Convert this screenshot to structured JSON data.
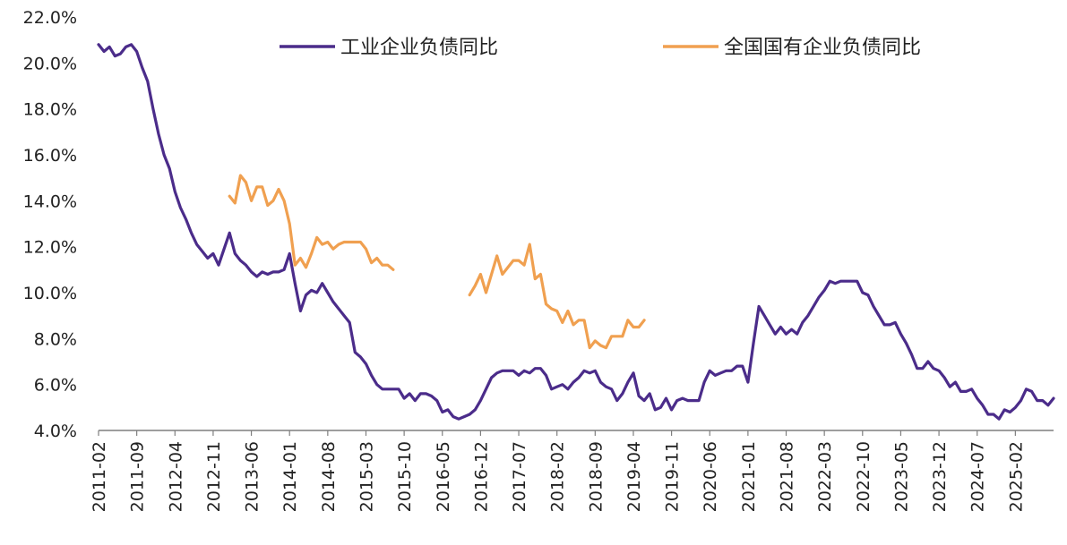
{
  "chart_data": {
    "type": "line",
    "title": "",
    "xlabel": "",
    "ylabel": "",
    "ylim": [
      4.0,
      22.0
    ],
    "y_ticks": [
      "22.0%",
      "20.0%",
      "18.0%",
      "16.0%",
      "14.0%",
      "12.0%",
      "10.0%",
      "8.0%",
      "6.0%",
      "4.0%"
    ],
    "y_tick_values": [
      22,
      20,
      18,
      16,
      14,
      12,
      10,
      8,
      6,
      4
    ],
    "x_start": "2011-02",
    "x_end": "2025-09",
    "x_ticks": [
      "2011-02",
      "2011-09",
      "2012-04",
      "2012-11",
      "2013-06",
      "2014-01",
      "2014-08",
      "2015-03",
      "2015-10",
      "2016-05",
      "2016-12",
      "2017-07",
      "2018-02",
      "2018-09",
      "2019-04",
      "2019-11",
      "2020-06",
      "2021-01",
      "2021-08",
      "2022-03",
      "2022-10",
      "2023-05",
      "2023-12",
      "2024-07",
      "2025-02"
    ],
    "legend_position": "top",
    "grid": false,
    "series": [
      {
        "name": "工业企业负债同比",
        "color": "#4B2C8A",
        "points": [
          [
            "2011-02",
            20.8
          ],
          [
            "2011-03",
            20.5
          ],
          [
            "2011-04",
            20.7
          ],
          [
            "2011-05",
            20.3
          ],
          [
            "2011-06",
            20.4
          ],
          [
            "2011-07",
            20.7
          ],
          [
            "2011-08",
            20.8
          ],
          [
            "2011-09",
            20.5
          ],
          [
            "2011-10",
            19.8
          ],
          [
            "2011-11",
            19.2
          ],
          [
            "2011-12",
            18.0
          ],
          [
            "2012-01",
            16.9
          ],
          [
            "2012-02",
            16.0
          ],
          [
            "2012-03",
            15.4
          ],
          [
            "2012-04",
            14.4
          ],
          [
            "2012-05",
            13.7
          ],
          [
            "2012-06",
            13.2
          ],
          [
            "2012-07",
            12.6
          ],
          [
            "2012-08",
            12.1
          ],
          [
            "2012-09",
            11.8
          ],
          [
            "2012-10",
            11.5
          ],
          [
            "2012-11",
            11.7
          ],
          [
            "2012-12",
            11.2
          ],
          [
            "2013-01",
            11.9
          ],
          [
            "2013-02",
            12.6
          ],
          [
            "2013-03",
            11.7
          ],
          [
            "2013-04",
            11.4
          ],
          [
            "2013-05",
            11.2
          ],
          [
            "2013-06",
            10.9
          ],
          [
            "2013-07",
            10.7
          ],
          [
            "2013-08",
            10.9
          ],
          [
            "2013-09",
            10.8
          ],
          [
            "2013-10",
            10.9
          ],
          [
            "2013-11",
            10.9
          ],
          [
            "2013-12",
            11.0
          ],
          [
            "2014-01",
            11.7
          ],
          [
            "2014-02",
            10.4
          ],
          [
            "2014-03",
            9.2
          ],
          [
            "2014-04",
            9.9
          ],
          [
            "2014-05",
            10.1
          ],
          [
            "2014-06",
            10.0
          ],
          [
            "2014-07",
            10.4
          ],
          [
            "2014-08",
            10.0
          ],
          [
            "2014-09",
            9.6
          ],
          [
            "2014-10",
            9.3
          ],
          [
            "2014-11",
            9.0
          ],
          [
            "2014-12",
            8.7
          ],
          [
            "2015-01",
            7.4
          ],
          [
            "2015-02",
            7.2
          ],
          [
            "2015-03",
            6.9
          ],
          [
            "2015-04",
            6.4
          ],
          [
            "2015-05",
            6.0
          ],
          [
            "2015-06",
            5.8
          ],
          [
            "2015-07",
            5.8
          ],
          [
            "2015-08",
            5.8
          ],
          [
            "2015-09",
            5.8
          ],
          [
            "2015-10",
            5.4
          ],
          [
            "2015-11",
            5.6
          ],
          [
            "2015-12",
            5.3
          ],
          [
            "2016-01",
            5.6
          ],
          [
            "2016-02",
            5.6
          ],
          [
            "2016-03",
            5.5
          ],
          [
            "2016-04",
            5.3
          ],
          [
            "2016-05",
            4.8
          ],
          [
            "2016-06",
            4.9
          ],
          [
            "2016-07",
            4.6
          ],
          [
            "2016-08",
            4.5
          ],
          [
            "2016-09",
            4.6
          ],
          [
            "2016-10",
            4.7
          ],
          [
            "2016-11",
            4.9
          ],
          [
            "2016-12",
            5.3
          ],
          [
            "2017-01",
            5.8
          ],
          [
            "2017-02",
            6.3
          ],
          [
            "2017-03",
            6.5
          ],
          [
            "2017-04",
            6.6
          ],
          [
            "2017-05",
            6.6
          ],
          [
            "2017-06",
            6.6
          ],
          [
            "2017-07",
            6.4
          ],
          [
            "2017-08",
            6.6
          ],
          [
            "2017-09",
            6.5
          ],
          [
            "2017-10",
            6.7
          ],
          [
            "2017-11",
            6.7
          ],
          [
            "2017-12",
            6.4
          ],
          [
            "2018-01",
            5.8
          ],
          [
            "2018-02",
            5.9
          ],
          [
            "2018-03",
            6.0
          ],
          [
            "2018-04",
            5.8
          ],
          [
            "2018-05",
            6.1
          ],
          [
            "2018-06",
            6.3
          ],
          [
            "2018-07",
            6.6
          ],
          [
            "2018-08",
            6.5
          ],
          [
            "2018-09",
            6.6
          ],
          [
            "2018-10",
            6.1
          ],
          [
            "2018-11",
            5.9
          ],
          [
            "2018-12",
            5.8
          ],
          [
            "2019-01",
            5.3
          ],
          [
            "2019-02",
            5.6
          ],
          [
            "2019-03",
            6.1
          ],
          [
            "2019-04",
            6.5
          ],
          [
            "2019-05",
            5.5
          ],
          [
            "2019-06",
            5.3
          ],
          [
            "2019-07",
            5.6
          ],
          [
            "2019-08",
            4.9
          ],
          [
            "2019-09",
            5.0
          ],
          [
            "2019-10",
            5.4
          ],
          [
            "2019-11",
            4.9
          ],
          [
            "2019-12",
            5.3
          ],
          [
            "2020-01",
            5.4
          ],
          [
            "2020-02",
            5.3
          ],
          [
            "2020-03",
            5.3
          ],
          [
            "2020-04",
            5.3
          ],
          [
            "2020-05",
            6.1
          ],
          [
            "2020-06",
            6.6
          ],
          [
            "2020-07",
            6.4
          ],
          [
            "2020-08",
            6.5
          ],
          [
            "2020-09",
            6.6
          ],
          [
            "2020-10",
            6.6
          ],
          [
            "2020-11",
            6.8
          ],
          [
            "2020-12",
            6.8
          ],
          [
            "2021-01",
            6.1
          ],
          [
            "2021-02",
            7.8
          ],
          [
            "2021-03",
            9.4
          ],
          [
            "2021-04",
            9.0
          ],
          [
            "2021-05",
            8.6
          ],
          [
            "2021-06",
            8.2
          ],
          [
            "2021-07",
            8.5
          ],
          [
            "2021-08",
            8.2
          ],
          [
            "2021-09",
            8.4
          ],
          [
            "2021-10",
            8.2
          ],
          [
            "2021-11",
            8.7
          ],
          [
            "2021-12",
            9.0
          ],
          [
            "2022-01",
            9.4
          ],
          [
            "2022-02",
            9.8
          ],
          [
            "2022-03",
            10.1
          ],
          [
            "2022-04",
            10.5
          ],
          [
            "2022-05",
            10.4
          ],
          [
            "2022-06",
            10.5
          ],
          [
            "2022-07",
            10.5
          ],
          [
            "2022-08",
            10.5
          ],
          [
            "2022-09",
            10.5
          ],
          [
            "2022-10",
            10.0
          ],
          [
            "2022-11",
            9.9
          ],
          [
            "2022-12",
            9.4
          ],
          [
            "2023-01",
            9.0
          ],
          [
            "2023-02",
            8.6
          ],
          [
            "2023-03",
            8.6
          ],
          [
            "2023-04",
            8.7
          ],
          [
            "2023-05",
            8.2
          ],
          [
            "2023-06",
            7.8
          ],
          [
            "2023-07",
            7.3
          ],
          [
            "2023-08",
            6.7
          ],
          [
            "2023-09",
            6.7
          ],
          [
            "2023-10",
            7.0
          ],
          [
            "2023-11",
            6.7
          ],
          [
            "2023-12",
            6.6
          ],
          [
            "2024-01",
            6.3
          ],
          [
            "2024-02",
            5.9
          ],
          [
            "2024-03",
            6.1
          ],
          [
            "2024-04",
            5.7
          ],
          [
            "2024-05",
            5.7
          ],
          [
            "2024-06",
            5.8
          ],
          [
            "2024-07",
            5.4
          ],
          [
            "2024-08",
            5.1
          ],
          [
            "2024-09",
            4.7
          ],
          [
            "2024-10",
            4.7
          ],
          [
            "2024-11",
            4.5
          ],
          [
            "2024-12",
            4.9
          ],
          [
            "2025-01",
            4.8
          ],
          [
            "2025-02",
            5.0
          ],
          [
            "2025-03",
            5.3
          ],
          [
            "2025-04",
            5.8
          ],
          [
            "2025-05",
            5.7
          ],
          [
            "2025-06",
            5.3
          ],
          [
            "2025-07",
            5.3
          ],
          [
            "2025-08",
            5.1
          ],
          [
            "2025-09",
            5.4
          ]
        ]
      },
      {
        "name": "全国国有企业负债同比",
        "color": "#F0A050",
        "segments": [
          [
            [
              "2013-02",
              14.2
            ],
            [
              "2013-03",
              13.9
            ],
            [
              "2013-04",
              15.1
            ],
            [
              "2013-05",
              14.8
            ],
            [
              "2013-06",
              14.0
            ],
            [
              "2013-07",
              14.6
            ],
            [
              "2013-08",
              14.6
            ],
            [
              "2013-09",
              13.8
            ],
            [
              "2013-10",
              14.0
            ],
            [
              "2013-11",
              14.5
            ],
            [
              "2013-12",
              14.0
            ],
            [
              "2014-01",
              13.0
            ],
            [
              "2014-02",
              11.2
            ],
            [
              "2014-03",
              11.5
            ],
            [
              "2014-04",
              11.1
            ],
            [
              "2014-05",
              11.7
            ],
            [
              "2014-06",
              12.4
            ],
            [
              "2014-07",
              12.1
            ],
            [
              "2014-08",
              12.2
            ],
            [
              "2014-09",
              11.9
            ],
            [
              "2014-10",
              12.1
            ],
            [
              "2014-11",
              12.2
            ],
            [
              "2014-12",
              12.2
            ],
            [
              "2015-01",
              12.2
            ],
            [
              "2015-02",
              12.2
            ],
            [
              "2015-03",
              11.9
            ],
            [
              "2015-04",
              11.3
            ],
            [
              "2015-05",
              11.5
            ],
            [
              "2015-06",
              11.2
            ],
            [
              "2015-07",
              11.2
            ],
            [
              "2015-08",
              11.0
            ]
          ],
          [
            [
              "2016-10",
              9.9
            ],
            [
              "2016-11",
              10.3
            ],
            [
              "2016-12",
              10.8
            ],
            [
              "2017-01",
              10.0
            ],
            [
              "2017-02",
              10.8
            ],
            [
              "2017-03",
              11.6
            ],
            [
              "2017-04",
              10.8
            ],
            [
              "2017-05",
              11.1
            ],
            [
              "2017-06",
              11.4
            ],
            [
              "2017-07",
              11.4
            ],
            [
              "2017-08",
              11.2
            ],
            [
              "2017-09",
              12.1
            ],
            [
              "2017-10",
              10.6
            ],
            [
              "2017-11",
              10.8
            ],
            [
              "2017-12",
              9.5
            ],
            [
              "2018-01",
              9.3
            ],
            [
              "2018-02",
              9.2
            ],
            [
              "2018-03",
              8.7
            ],
            [
              "2018-04",
              9.2
            ],
            [
              "2018-05",
              8.6
            ],
            [
              "2018-06",
              8.8
            ],
            [
              "2018-07",
              8.8
            ],
            [
              "2018-08",
              7.6
            ],
            [
              "2018-09",
              7.9
            ],
            [
              "2018-10",
              7.7
            ],
            [
              "2018-11",
              7.6
            ],
            [
              "2018-12",
              8.1
            ],
            [
              "2019-01",
              8.1
            ],
            [
              "2019-02",
              8.1
            ],
            [
              "2019-03",
              8.8
            ],
            [
              "2019-04",
              8.5
            ],
            [
              "2019-05",
              8.5
            ],
            [
              "2019-06",
              8.8
            ]
          ]
        ]
      }
    ]
  }
}
